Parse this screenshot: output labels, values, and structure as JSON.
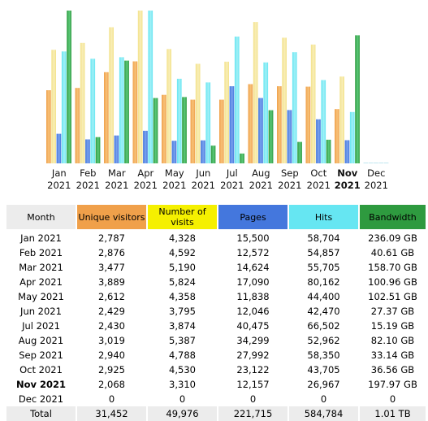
{
  "colors": {
    "unique_visitors": "#f0a04a",
    "number_of_visits": "#f5f000",
    "pages": "#4477dd",
    "hits": "#66e6f2",
    "bandwidth": "#2e9a3f",
    "header_month": "#ececec",
    "chart_unique_light": "#f7c27a",
    "chart_visits_light": "#f3e28a",
    "chart_pages_light": "#7aa2ee",
    "chart_hits_light": "#a3f0f6",
    "chart_bw_light": "#5cc97a"
  },
  "table": {
    "headers": {
      "month": "Month",
      "unique_visitors": "Unique visitors",
      "number_of_visits": "Number of visits",
      "pages": "Pages",
      "hits": "Hits",
      "bandwidth": "Bandwidth"
    },
    "rows": [
      {
        "month": "Jan 2021",
        "unique": "2,787",
        "visits": "4,328",
        "pages": "15,500",
        "hits": "58,704",
        "bandwidth": "236.09 GB"
      },
      {
        "month": "Feb 2021",
        "unique": "2,876",
        "visits": "4,592",
        "pages": "12,572",
        "hits": "54,857",
        "bandwidth": "40.61 GB"
      },
      {
        "month": "Mar 2021",
        "unique": "3,477",
        "visits": "5,190",
        "pages": "14,624",
        "hits": "55,705",
        "bandwidth": "158.70 GB"
      },
      {
        "month": "Apr 2021",
        "unique": "3,889",
        "visits": "5,824",
        "pages": "17,090",
        "hits": "80,162",
        "bandwidth": "100.96 GB"
      },
      {
        "month": "May 2021",
        "unique": "2,612",
        "visits": "4,358",
        "pages": "11,838",
        "hits": "44,400",
        "bandwidth": "102.51 GB"
      },
      {
        "month": "Jun 2021",
        "unique": "2,429",
        "visits": "3,795",
        "pages": "12,046",
        "hits": "42,470",
        "bandwidth": "27.37 GB"
      },
      {
        "month": "Jul 2021",
        "unique": "2,430",
        "visits": "3,874",
        "pages": "40,475",
        "hits": "66,502",
        "bandwidth": "15.19 GB"
      },
      {
        "month": "Aug 2021",
        "unique": "3,019",
        "visits": "5,387",
        "pages": "34,299",
        "hits": "52,962",
        "bandwidth": "82.10 GB"
      },
      {
        "month": "Sep 2021",
        "unique": "2,940",
        "visits": "4,788",
        "pages": "27,992",
        "hits": "58,350",
        "bandwidth": "33.14 GB"
      },
      {
        "month": "Oct 2021",
        "unique": "2,925",
        "visits": "4,530",
        "pages": "23,122",
        "hits": "43,705",
        "bandwidth": "36.56 GB"
      },
      {
        "month": "Nov 2021",
        "unique": "2,068",
        "visits": "3,310",
        "pages": "12,157",
        "hits": "26,967",
        "bandwidth": "197.97 GB",
        "current": true
      },
      {
        "month": "Dec 2021",
        "unique": "0",
        "visits": "0",
        "pages": "0",
        "hits": "0",
        "bandwidth": "0"
      }
    ],
    "total": {
      "month": "Total",
      "unique": "31,452",
      "visits": "49,976",
      "pages": "221,715",
      "hits": "584,784",
      "bandwidth": "1.01 TB"
    }
  },
  "chart_data": {
    "type": "bar",
    "categories": [
      [
        "Jan",
        "2021"
      ],
      [
        "Feb",
        "2021"
      ],
      [
        "Mar",
        "2021"
      ],
      [
        "Apr",
        "2021"
      ],
      [
        "May",
        "2021"
      ],
      [
        "Jun",
        "2021"
      ],
      [
        "Jul",
        "2021"
      ],
      [
        "Aug",
        "2021"
      ],
      [
        "Sep",
        "2021"
      ],
      [
        "Oct",
        "2021"
      ],
      [
        "Nov",
        "2021"
      ],
      [
        "Dec",
        "2021"
      ]
    ],
    "highlighted_category": 10,
    "series": [
      {
        "key": "unique_visitors",
        "values": [
          2787,
          2876,
          3477,
          3889,
          2612,
          2429,
          2430,
          3019,
          2940,
          2925,
          2068,
          0
        ]
      },
      {
        "key": "number_of_visits",
        "values": [
          4328,
          4592,
          5190,
          5824,
          4358,
          3795,
          3874,
          5387,
          4788,
          4530,
          3310,
          0
        ]
      },
      {
        "key": "pages",
        "values": [
          15500,
          12572,
          14624,
          17090,
          11838,
          12046,
          40475,
          34299,
          27992,
          23122,
          12157,
          0
        ]
      },
      {
        "key": "hits",
        "values": [
          58704,
          54857,
          55705,
          80162,
          44400,
          42470,
          66502,
          52962,
          58350,
          43705,
          26967,
          0
        ]
      },
      {
        "key": "bandwidth_gb",
        "values": [
          236.09,
          40.61,
          158.7,
          100.96,
          102.51,
          27.37,
          15.19,
          82.1,
          33.14,
          36.56,
          197.97,
          0
        ]
      }
    ],
    "scale_groups": {
      "visitors_visits": [
        "unique_visitors",
        "number_of_visits"
      ],
      "pages_hits": [
        "pages",
        "hits"
      ],
      "bandwidth": [
        "bandwidth_gb"
      ]
    },
    "grid": false,
    "legend": "none"
  }
}
